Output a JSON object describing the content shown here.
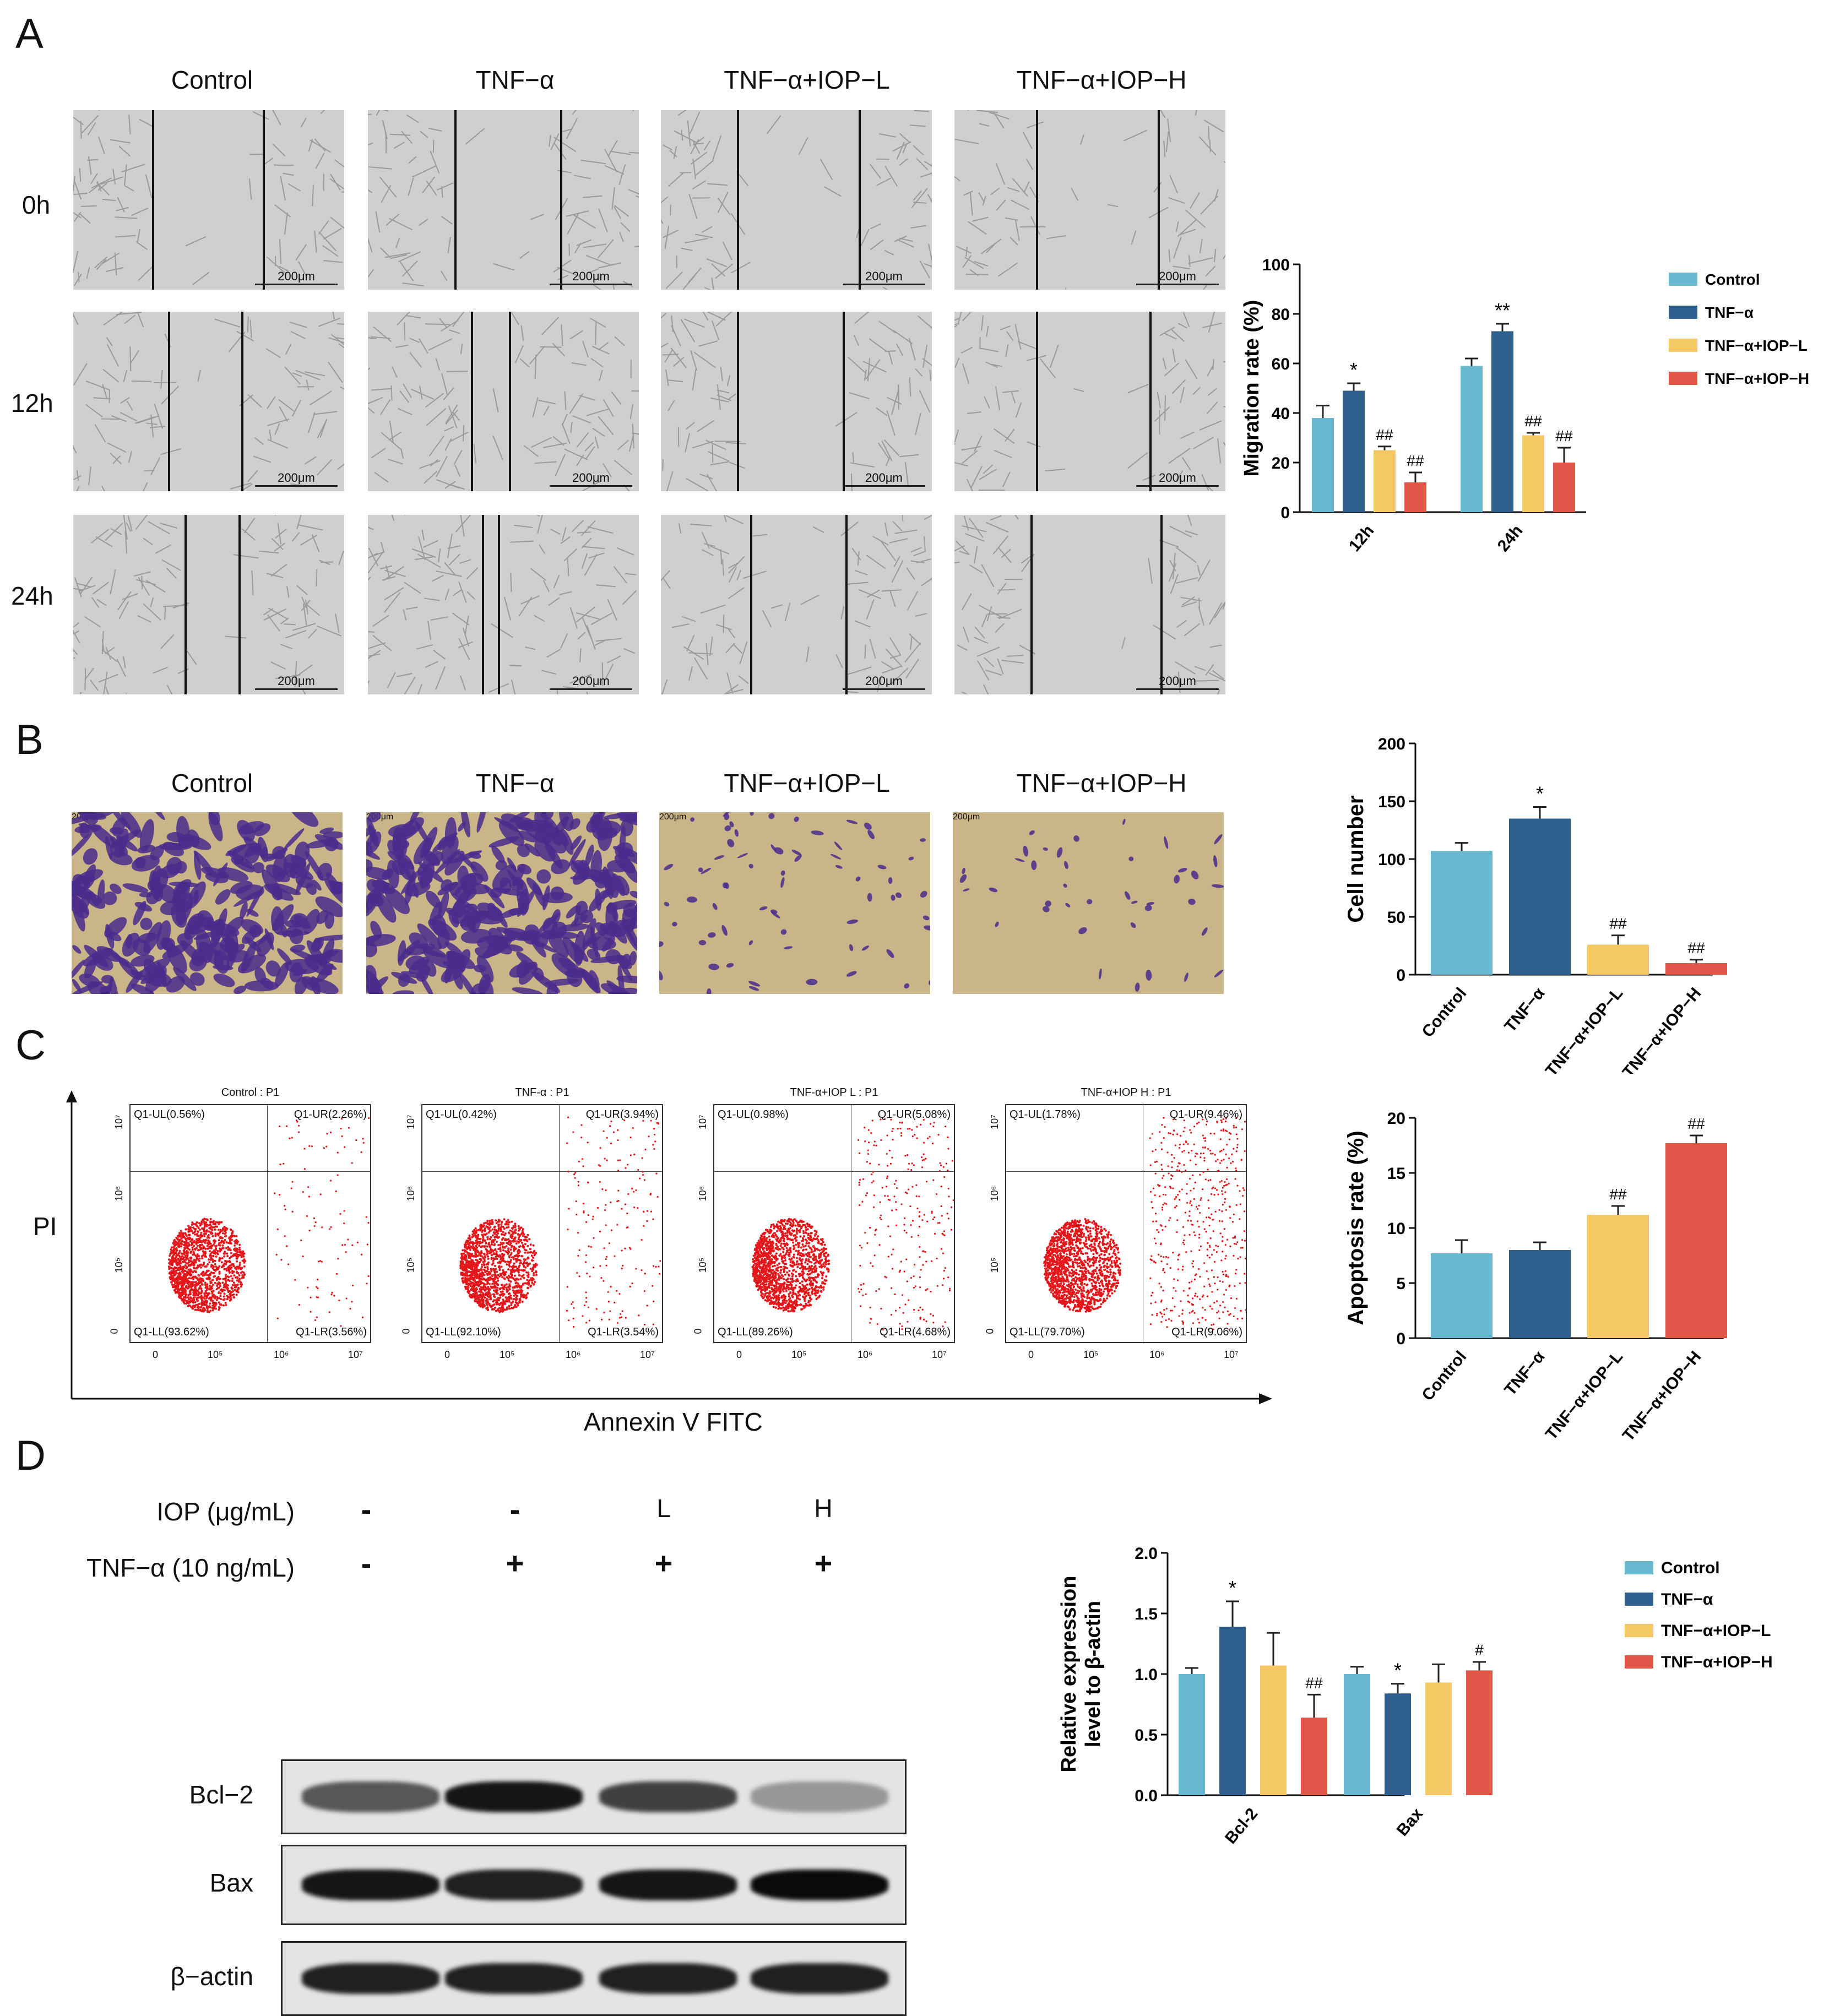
{
  "panels": {
    "a": "A",
    "b": "B",
    "c": "C",
    "d": "D"
  },
  "groups": [
    "Control",
    "TNF−α",
    "TNF−α+IOP−L",
    "TNF−α+IOP−H"
  ],
  "panel_a": {
    "timepoints": [
      "0h",
      "12h",
      "24h"
    ],
    "scale_bar": "200μm"
  },
  "panel_b": {
    "scale_bar": "200μm"
  },
  "panel_c": {
    "y_axis_label": "PI",
    "x_axis_label": "Annexin V FITC",
    "plots": [
      {
        "title": "Control : P1",
        "ul": "Q1-UL(0.56%)",
        "ur": "Q1-UR(2.26%)",
        "ll": "Q1-LL(93.62%)",
        "lr": "Q1-LR(3.56%)"
      },
      {
        "title": "TNF-α : P1",
        "ul": "Q1-UL(0.42%)",
        "ur": "Q1-UR(3.94%)",
        "ll": "Q1-LL(92.10%)",
        "lr": "Q1-LR(3.54%)"
      },
      {
        "title": "TNF-α+IOP L : P1",
        "ul": "Q1-UL(0.98%)",
        "ur": "Q1-UR(5.08%)",
        "ll": "Q1-LL(89.26%)",
        "lr": "Q1-LR(4.68%)"
      },
      {
        "title": "TNF-α+IOP H : P1",
        "ul": "Q1-UL(1.78%)",
        "ur": "Q1-UR(9.46%)",
        "ll": "Q1-LL(79.70%)",
        "lr": "Q1-LR(9.06%)"
      }
    ],
    "x_ticks": [
      "0",
      "10⁵",
      "10⁶",
      "10⁷"
    ],
    "y_ticks": [
      "10⁷",
      "10⁶",
      "10⁵",
      "0"
    ]
  },
  "panel_d": {
    "iop_label": "IOP (μg/mL)",
    "tnf_label": "TNF−α (10 ng/mL)",
    "iop_values": [
      "-",
      "-",
      "L",
      "H"
    ],
    "tnf_values": [
      "-",
      "+",
      "+",
      "+"
    ],
    "blots": [
      "Bcl−2",
      "Bax",
      "β−actin"
    ]
  },
  "colors": {
    "control": "#6ab7d0",
    "tnf": "#2f5f8c",
    "iop_l": "#f5c866",
    "iop_h": "#e0574a",
    "flow_dot": "#e3171b",
    "crystal_violet": "#4a2c8c",
    "membrane": "#c9b588"
  },
  "chart_data": [
    {
      "type": "bar",
      "ylabel": "Migration rate (%)",
      "ylim": [
        0,
        100
      ],
      "yticks": [
        "0",
        "20",
        "40",
        "60",
        "80",
        "100"
      ],
      "categories": [
        "12h",
        "24h"
      ],
      "legend": "right",
      "series": [
        {
          "name": "Control",
          "values": [
            38,
            59
          ],
          "errors": [
            5,
            3
          ],
          "sig": [
            "",
            ""
          ]
        },
        {
          "name": "TNF−α",
          "values": [
            49,
            73
          ],
          "errors": [
            3,
            3
          ],
          "sig": [
            "*",
            "**"
          ]
        },
        {
          "name": "TNF−α+IOP−L",
          "values": [
            25,
            31
          ],
          "errors": [
            1.5,
            1
          ],
          "sig": [
            "##",
            "##"
          ]
        },
        {
          "name": "TNF−α+IOP−H",
          "values": [
            12,
            20
          ],
          "errors": [
            4,
            6
          ],
          "sig": [
            "##",
            "##"
          ]
        }
      ]
    },
    {
      "type": "bar",
      "ylabel": "Cell number",
      "ylim": [
        0,
        200
      ],
      "yticks": [
        "0",
        "50",
        "100",
        "150",
        "200"
      ],
      "categories": [
        "Control",
        "TNF−α",
        "TNF−α+IOP−L",
        "TNF−α+IOP−H"
      ],
      "values": [
        107,
        135,
        26,
        10
      ],
      "errors": [
        7,
        10,
        8,
        3
      ],
      "sig": [
        "",
        "*",
        "##",
        "##"
      ]
    },
    {
      "type": "bar",
      "ylabel": "Apoptosis rate (%)",
      "ylim": [
        0,
        20
      ],
      "yticks": [
        "0",
        "5",
        "10",
        "15",
        "20"
      ],
      "categories": [
        "Control",
        "TNF−α",
        "TNF−α+IOP−L",
        "TNF−α+IOP−H"
      ],
      "values": [
        7.7,
        8.0,
        11.2,
        17.7
      ],
      "errors": [
        1.2,
        0.7,
        0.8,
        0.7
      ],
      "sig": [
        "",
        "",
        "##",
        "##"
      ]
    },
    {
      "type": "bar",
      "ylabel": "Relative expression level to β-actin",
      "ylim": [
        0,
        2.0
      ],
      "yticks": [
        "0.0",
        "0.5",
        "1.0",
        "1.5",
        "2.0"
      ],
      "categories": [
        "Bcl-2",
        "Bax"
      ],
      "legend": "right",
      "series": [
        {
          "name": "Control",
          "values": [
            1.0,
            1.0
          ],
          "errors": [
            0.05,
            0.06
          ],
          "sig": [
            "",
            ""
          ]
        },
        {
          "name": "TNF−α",
          "values": [
            1.39,
            0.84
          ],
          "errors": [
            0.21,
            0.08
          ],
          "sig": [
            "*",
            "*"
          ]
        },
        {
          "name": "TNF−α+IOP−L",
          "values": [
            1.07,
            0.93
          ],
          "errors": [
            0.27,
            0.15
          ],
          "sig": [
            "",
            ""
          ]
        },
        {
          "name": "TNF−α+IOP−H",
          "values": [
            0.64,
            1.03
          ],
          "errors": [
            0.19,
            0.07
          ],
          "sig": [
            "##",
            "#"
          ]
        }
      ]
    }
  ]
}
